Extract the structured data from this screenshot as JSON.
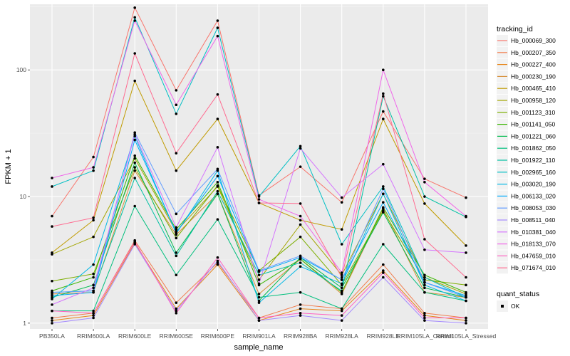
{
  "chart_data": {
    "type": "line",
    "xlabel": "sample_name",
    "ylabel": "FPKM + 1",
    "y_scale": "log10",
    "ylim": [
      0.9,
      330
    ],
    "y_ticks": [
      1,
      10,
      100
    ],
    "y_tick_labels": [
      "1",
      "10",
      "100"
    ],
    "grid": true,
    "legend_placement": "right",
    "categories": [
      "PB350LA",
      "RRIM600LA",
      "RRIM600LE",
      "RRIM600SE",
      "RRIM600PE",
      "RRIM901LA",
      "RRIM928BA",
      "RRIM928LA",
      "RRIM928LE",
      "RRIM105LA_Control",
      "RRIM105LA_Stressed"
    ],
    "legend": {
      "color_title": "tracking_id",
      "shape_title": "quant_status",
      "shape_entries": [
        "OK"
      ]
    },
    "series": [
      {
        "name": "Hb_000069_300",
        "color": "#F8766D",
        "values": [
          7.0,
          20.5,
          310,
          69,
          245,
          10.2,
          17.2,
          9.0,
          47.0,
          13.8,
          9.8
        ]
      },
      {
        "name": "Hb_000207_350",
        "color": "#F17E4F",
        "values": [
          1.1,
          1.2,
          4.5,
          1.45,
          3.0,
          1.1,
          1.4,
          1.3,
          2.9,
          1.2,
          1.1
        ]
      },
      {
        "name": "Hb_000227_400",
        "color": "#E7861B",
        "values": [
          1.05,
          1.15,
          4.3,
          1.3,
          2.9,
          1.05,
          1.3,
          1.25,
          2.6,
          1.15,
          1.05
        ]
      },
      {
        "name": "Hb_000230_190",
        "color": "#D7913B",
        "values": [
          1.7,
          1.75,
          16.0,
          5.0,
          10.5,
          1.7,
          3.2,
          1.7,
          8.0,
          1.75,
          1.6
        ]
      },
      {
        "name": "Hb_000465_410",
        "color": "#C09B00",
        "values": [
          3.6,
          6.5,
          82.0,
          16.0,
          41.0,
          8.9,
          6.5,
          5.5,
          41.0,
          8.8,
          4.1
        ]
      },
      {
        "name": "Hb_000958_120",
        "color": "#A3A500",
        "values": [
          3.5,
          4.8,
          20.0,
          5.3,
          12.0,
          2.2,
          6.0,
          2.4,
          10.5,
          2.3,
          1.7
        ]
      },
      {
        "name": "Hb_001123_310",
        "color": "#7CAE00",
        "values": [
          2.15,
          2.45,
          17.0,
          4.7,
          12.2,
          2.6,
          4.8,
          2.0,
          7.7,
          2.2,
          2.0
        ]
      },
      {
        "name": "Hb_001141_050",
        "color": "#39B600",
        "values": [
          1.8,
          2.3,
          21.0,
          5.5,
          13.0,
          2.0,
          3.2,
          1.75,
          8.2,
          2.4,
          1.75
        ]
      },
      {
        "name": "Hb_001221_060",
        "color": "#00BB4E",
        "values": [
          1.6,
          2.0,
          18.5,
          3.6,
          10.5,
          1.5,
          3.3,
          1.9,
          7.5,
          1.9,
          1.6
        ]
      },
      {
        "name": "Hb_001862_050",
        "color": "#00BF7D",
        "values": [
          1.25,
          1.25,
          8.4,
          2.4,
          6.6,
          1.6,
          1.75,
          1.3,
          4.2,
          1.75,
          1.5
        ]
      },
      {
        "name": "Hb_001922_110",
        "color": "#00C1A3",
        "values": [
          1.75,
          1.8,
          14.0,
          3.4,
          11.0,
          2.4,
          3.0,
          1.8,
          62.0,
          10.0,
          6.9
        ]
      },
      {
        "name": "Hb_002965_160",
        "color": "#00BFC4",
        "values": [
          12.0,
          16.0,
          260,
          45,
          215,
          10.0,
          25.0,
          4.2,
          12.0,
          2.3,
          1.6
        ]
      },
      {
        "name": "Hb_003020_190",
        "color": "#00B8E5",
        "values": [
          1.55,
          2.9,
          30.0,
          5.1,
          16.0,
          1.45,
          2.8,
          2.05,
          10.5,
          2.0,
          1.5
        ]
      },
      {
        "name": "Hb_006133_020",
        "color": "#00ABFD",
        "values": [
          1.65,
          1.75,
          28.0,
          5.2,
          14.5,
          2.55,
          3.3,
          2.2,
          9.0,
          2.1,
          1.65
        ]
      },
      {
        "name": "Hb_008053_030",
        "color": "#619CFF",
        "values": [
          1.75,
          1.8,
          32.0,
          7.3,
          16.5,
          2.6,
          3.4,
          2.2,
          11.5,
          2.1,
          1.6
        ]
      },
      {
        "name": "Hb_008511_040",
        "color": "#A58AFF",
        "values": [
          1.0,
          1.1,
          4.2,
          1.25,
          3.1,
          1.05,
          1.15,
          1.05,
          2.3,
          1.05,
          1.0
        ]
      },
      {
        "name": "Hb_010381_040",
        "color": "#D575FE",
        "values": [
          1.4,
          1.9,
          31.0,
          5.7,
          24.5,
          2.05,
          24.0,
          9.8,
          18.0,
          3.8,
          3.6
        ]
      },
      {
        "name": "Hb_018133_070",
        "color": "#F066EA",
        "values": [
          14.0,
          17.0,
          245,
          53,
          185,
          9.5,
          7.0,
          2.5,
          100,
          13.0,
          7.0
        ]
      },
      {
        "name": "Hb_047659_010",
        "color": "#FF61C3",
        "values": [
          1.25,
          1.2,
          4.4,
          1.2,
          3.3,
          1.1,
          1.2,
          1.15,
          2.5,
          1.1,
          1.1
        ]
      },
      {
        "name": "Hb_071674_010",
        "color": "#FF6C91",
        "values": [
          5.8,
          6.8,
          135,
          22.0,
          64.0,
          8.9,
          8.8,
          2.3,
          65.0,
          4.6,
          2.3
        ]
      }
    ]
  }
}
